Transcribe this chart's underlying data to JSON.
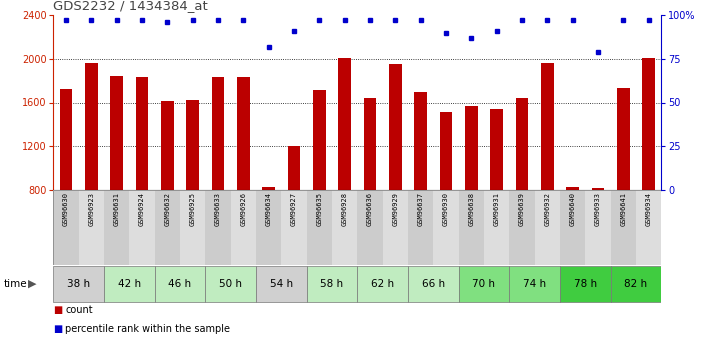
{
  "title": "GDS2232 / 1434384_at",
  "samples": [
    "GSM96630",
    "GSM96923",
    "GSM96631",
    "GSM96924",
    "GSM96632",
    "GSM96925",
    "GSM96633",
    "GSM96926",
    "GSM96634",
    "GSM96927",
    "GSM96635",
    "GSM96928",
    "GSM96636",
    "GSM96929",
    "GSM96637",
    "GSM96930",
    "GSM96638",
    "GSM96931",
    "GSM96639",
    "GSM96932",
    "GSM96640",
    "GSM96933",
    "GSM96641",
    "GSM96934"
  ],
  "counts": [
    1720,
    1960,
    1840,
    1830,
    1610,
    1620,
    1830,
    1830,
    830,
    1200,
    1710,
    2010,
    1640,
    1950,
    1700,
    1510,
    1570,
    1540,
    1640,
    1960,
    830,
    820,
    1730,
    2010
  ],
  "percentile_ranks": [
    97,
    97,
    97,
    97,
    96,
    97,
    97,
    97,
    82,
    91,
    97,
    97,
    97,
    97,
    97,
    90,
    87,
    91,
    97,
    97,
    97,
    79,
    97,
    97
  ],
  "time_groups": [
    {
      "label": "38 h",
      "start": 0,
      "end": 1,
      "color": "#d0d0d0"
    },
    {
      "label": "42 h",
      "start": 2,
      "end": 3,
      "color": "#c0ecc0"
    },
    {
      "label": "46 h",
      "start": 4,
      "end": 5,
      "color": "#c0ecc0"
    },
    {
      "label": "50 h",
      "start": 6,
      "end": 7,
      "color": "#c0ecc0"
    },
    {
      "label": "54 h",
      "start": 8,
      "end": 9,
      "color": "#d0d0d0"
    },
    {
      "label": "58 h",
      "start": 10,
      "end": 11,
      "color": "#c0ecc0"
    },
    {
      "label": "62 h",
      "start": 12,
      "end": 13,
      "color": "#c0ecc0"
    },
    {
      "label": "66 h",
      "start": 14,
      "end": 15,
      "color": "#c0ecc0"
    },
    {
      "label": "70 h",
      "start": 16,
      "end": 17,
      "color": "#80e080"
    },
    {
      "label": "74 h",
      "start": 18,
      "end": 19,
      "color": "#80e080"
    },
    {
      "label": "78 h",
      "start": 20,
      "end": 21,
      "color": "#40cc40"
    },
    {
      "label": "82 h",
      "start": 22,
      "end": 23,
      "color": "#40cc40"
    }
  ],
  "ylim_left": [
    800,
    2400
  ],
  "ylim_right": [
    0,
    100
  ],
  "bar_color": "#bb0000",
  "dot_color": "#0000cc",
  "bg_color": "#ffffff",
  "sample_bg_odd": "#cccccc",
  "sample_bg_even": "#dddddd",
  "yticks_left": [
    800,
    1200,
    1600,
    2000,
    2400
  ],
  "yticks_right": [
    0,
    25,
    50,
    75,
    100
  ],
  "dotted_lines": [
    1200,
    1600,
    2000
  ]
}
